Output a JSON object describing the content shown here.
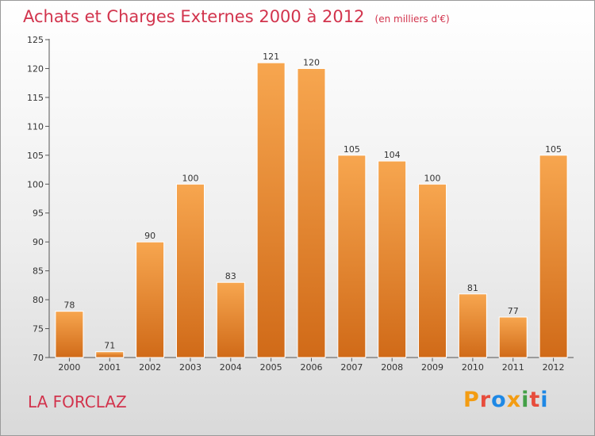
{
  "title": "Achats et Charges Externes 2000 à 2012",
  "subtitle": "(en milliers d'€)",
  "place": "LA FORCLAZ",
  "brand": {
    "text": "Proxiti",
    "letter_colors": [
      "#f39c12",
      "#e74c3c",
      "#1e88e5",
      "#f39c12",
      "#43a047",
      "#e74c3c",
      "#1e88e5"
    ]
  },
  "colors": {
    "bar_light": "#f7a64f",
    "bar_dark": "#d06a18",
    "title": "#d2344d"
  },
  "chart_data": {
    "type": "bar",
    "title": "Achats et Charges Externes 2000 à 2012",
    "subtitle": "(en milliers d'€)",
    "xlabel": "",
    "ylabel": "",
    "categories": [
      "2000",
      "2001",
      "2002",
      "2003",
      "2004",
      "2005",
      "2006",
      "2007",
      "2008",
      "2009",
      "2010",
      "2011",
      "2012"
    ],
    "values": [
      78,
      71,
      90,
      100,
      83,
      121,
      120,
      105,
      104,
      100,
      81,
      77,
      105
    ],
    "ylim": [
      70,
      125
    ],
    "yticks": [
      70,
      75,
      80,
      85,
      90,
      95,
      100,
      105,
      110,
      115,
      120,
      125
    ],
    "grid": false,
    "data_labels": true
  }
}
